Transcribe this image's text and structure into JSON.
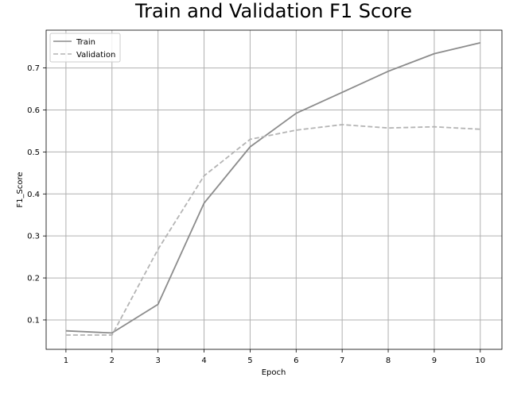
{
  "chart_data": {
    "type": "line",
    "title": "Train and Validation F1 Score",
    "xlabel": "Epoch",
    "ylabel": "F1_Score",
    "x": [
      1,
      2,
      3,
      4,
      5,
      6,
      7,
      8,
      9,
      10
    ],
    "xticks": [
      "1",
      "2",
      "3",
      "4",
      "5",
      "6",
      "7",
      "8",
      "9",
      "10"
    ],
    "yticks": [
      "0.1",
      "0.2",
      "0.3",
      "0.4",
      "0.5",
      "0.6",
      "0.7"
    ],
    "xlim": [
      0.57,
      10.47
    ],
    "ylim": [
      0.03,
      0.79
    ],
    "grid": true,
    "legend_position": "top-left",
    "series": [
      {
        "name": "Train",
        "style": "solid",
        "color": "#8c8c8c",
        "values": [
          0.074,
          0.069,
          0.137,
          0.378,
          0.512,
          0.592,
          0.642,
          0.692,
          0.734,
          0.76
        ]
      },
      {
        "name": "Validation",
        "style": "dashed",
        "color": "#b4b4b4",
        "values": [
          0.064,
          0.064,
          0.268,
          0.443,
          0.53,
          0.552,
          0.565,
          0.557,
          0.56,
          0.554
        ]
      }
    ]
  }
}
